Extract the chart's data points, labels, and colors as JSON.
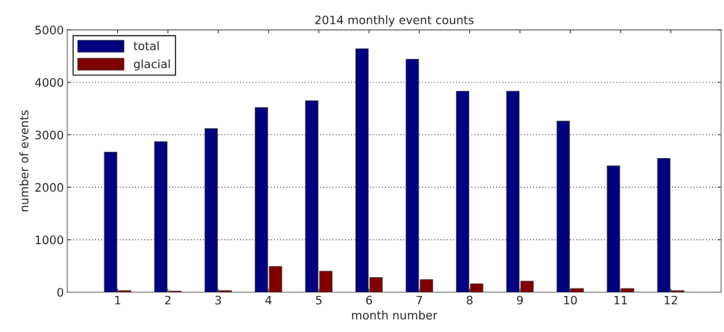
{
  "chart_data": {
    "type": "bar",
    "title": "2014 monthly event counts",
    "xlabel": "month number",
    "ylabel": "number of events",
    "categories": [
      "1",
      "2",
      "3",
      "4",
      "5",
      "6",
      "7",
      "8",
      "9",
      "10",
      "11",
      "12"
    ],
    "series": [
      {
        "name": "total",
        "color": "#000080",
        "values": [
          2670,
          2870,
          3120,
          3520,
          3650,
          4640,
          4440,
          3830,
          3830,
          3260,
          2410,
          2550
        ]
      },
      {
        "name": "glacial",
        "color": "#800000",
        "values": [
          30,
          20,
          30,
          490,
          400,
          280,
          240,
          160,
          210,
          70,
          70,
          30
        ]
      }
    ],
    "ylim": [
      0,
      5000
    ],
    "yticks": [
      0,
      1000,
      2000,
      3000,
      4000,
      5000
    ],
    "grid": "y",
    "legend": "top left"
  }
}
